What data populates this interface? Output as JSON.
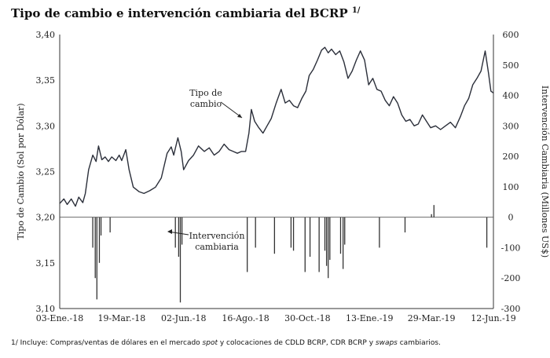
{
  "chart_data": {
    "type": "line",
    "title": "Tipo de cambio e intervención cambiaria del BCRP",
    "title_sup": "1/",
    "ylabel_left": "Tipo de Cambio (Sol por Dólar)",
    "ylabel_right": "Intervención Cambiaria (Millones US$)",
    "ylim_left": [
      3.1,
      3.4
    ],
    "yticks_left": [
      "3,10",
      "3,15",
      "3,20",
      "3,25",
      "3,30",
      "3,35",
      "3,40"
    ],
    "ylim_right": [
      -300,
      600
    ],
    "yticks_right": [
      "-300",
      "-200",
      "-100",
      "0",
      "100",
      "200",
      "300",
      "400",
      "500",
      "600"
    ],
    "x_ticks": [
      "03-Ene.-18",
      "19-Mar.-18",
      "02-Jun.-18",
      "16-Ago.-18",
      "30-Oct.-18",
      "13-Ene.-19",
      "29-Mar.-19",
      "12-Jun.-19"
    ],
    "x_range": [
      "2018-01-03",
      "2019-06-12"
    ],
    "grid": false,
    "annotations": [
      {
        "text": "Tipo de cambio",
        "lines": [
          "Tipo de",
          "cambio"
        ]
      },
      {
        "text": "Intervención cambiaria",
        "lines": [
          "Intervención",
          "cambiaria"
        ]
      }
    ],
    "series": [
      {
        "name": "Tipo de cambio",
        "axis": "left",
        "points": [
          [
            "2018-01-03",
            3.215
          ],
          [
            "2018-01-08",
            3.22
          ],
          [
            "2018-01-12",
            3.214
          ],
          [
            "2018-01-17",
            3.22
          ],
          [
            "2018-01-22",
            3.212
          ],
          [
            "2018-01-26",
            3.222
          ],
          [
            "2018-01-31",
            3.216
          ],
          [
            "2018-02-03",
            3.226
          ],
          [
            "2018-02-07",
            3.252
          ],
          [
            "2018-02-12",
            3.268
          ],
          [
            "2018-02-16",
            3.261
          ],
          [
            "2018-02-19",
            3.278
          ],
          [
            "2018-02-23",
            3.263
          ],
          [
            "2018-02-27",
            3.266
          ],
          [
            "2018-03-03",
            3.261
          ],
          [
            "2018-03-07",
            3.266
          ],
          [
            "2018-03-12",
            3.262
          ],
          [
            "2018-03-16",
            3.268
          ],
          [
            "2018-03-19",
            3.262
          ],
          [
            "2018-03-24",
            3.274
          ],
          [
            "2018-03-28",
            3.252
          ],
          [
            "2018-04-02",
            3.233
          ],
          [
            "2018-04-09",
            3.228
          ],
          [
            "2018-04-15",
            3.226
          ],
          [
            "2018-04-22",
            3.229
          ],
          [
            "2018-04-29",
            3.233
          ],
          [
            "2018-05-06",
            3.243
          ],
          [
            "2018-05-13",
            3.27
          ],
          [
            "2018-05-18",
            3.277
          ],
          [
            "2018-05-21",
            3.268
          ],
          [
            "2018-05-26",
            3.287
          ],
          [
            "2018-05-30",
            3.272
          ],
          [
            "2018-06-02",
            3.252
          ],
          [
            "2018-06-08",
            3.262
          ],
          [
            "2018-06-14",
            3.268
          ],
          [
            "2018-06-20",
            3.278
          ],
          [
            "2018-06-27",
            3.272
          ],
          [
            "2018-07-03",
            3.276
          ],
          [
            "2018-07-09",
            3.268
          ],
          [
            "2018-07-15",
            3.272
          ],
          [
            "2018-07-21",
            3.28
          ],
          [
            "2018-07-27",
            3.274
          ],
          [
            "2018-08-01",
            3.272
          ],
          [
            "2018-08-06",
            3.27
          ],
          [
            "2018-08-11",
            3.272
          ],
          [
            "2018-08-16",
            3.272
          ],
          [
            "2018-08-20",
            3.292
          ],
          [
            "2018-08-23",
            3.318
          ],
          [
            "2018-08-27",
            3.305
          ],
          [
            "2018-09-01",
            3.298
          ],
          [
            "2018-09-06",
            3.292
          ],
          [
            "2018-09-11",
            3.3
          ],
          [
            "2018-09-16",
            3.308
          ],
          [
            "2018-09-22",
            3.325
          ],
          [
            "2018-09-28",
            3.34
          ],
          [
            "2018-10-03",
            3.325
          ],
          [
            "2018-10-08",
            3.328
          ],
          [
            "2018-10-13",
            3.322
          ],
          [
            "2018-10-18",
            3.32
          ],
          [
            "2018-10-23",
            3.33
          ],
          [
            "2018-10-28",
            3.338
          ],
          [
            "2018-11-01",
            3.355
          ],
          [
            "2018-11-06",
            3.362
          ],
          [
            "2018-11-11",
            3.372
          ],
          [
            "2018-11-16",
            3.383
          ],
          [
            "2018-11-20",
            3.386
          ],
          [
            "2018-11-24",
            3.38
          ],
          [
            "2018-11-28",
            3.384
          ],
          [
            "2018-12-03",
            3.378
          ],
          [
            "2018-12-08",
            3.382
          ],
          [
            "2018-12-13",
            3.37
          ],
          [
            "2018-12-18",
            3.352
          ],
          [
            "2018-12-23",
            3.36
          ],
          [
            "2018-12-28",
            3.372
          ],
          [
            "2019-01-02",
            3.382
          ],
          [
            "2019-01-07",
            3.372
          ],
          [
            "2019-01-12",
            3.345
          ],
          [
            "2019-01-17",
            3.352
          ],
          [
            "2019-01-22",
            3.34
          ],
          [
            "2019-01-27",
            3.338
          ],
          [
            "2019-02-01",
            3.328
          ],
          [
            "2019-02-06",
            3.322
          ],
          [
            "2019-02-11",
            3.332
          ],
          [
            "2019-02-16",
            3.325
          ],
          [
            "2019-02-21",
            3.312
          ],
          [
            "2019-02-26",
            3.305
          ],
          [
            "2019-03-03",
            3.307
          ],
          [
            "2019-03-08",
            3.3
          ],
          [
            "2019-03-13",
            3.302
          ],
          [
            "2019-03-18",
            3.312
          ],
          [
            "2019-03-23",
            3.305
          ],
          [
            "2019-03-28",
            3.298
          ],
          [
            "2019-04-03",
            3.3
          ],
          [
            "2019-04-09",
            3.296
          ],
          [
            "2019-04-15",
            3.3
          ],
          [
            "2019-04-21",
            3.304
          ],
          [
            "2019-04-27",
            3.298
          ],
          [
            "2019-05-03",
            3.31
          ],
          [
            "2019-05-08",
            3.322
          ],
          [
            "2019-05-13",
            3.33
          ],
          [
            "2019-05-18",
            3.345
          ],
          [
            "2019-05-23",
            3.352
          ],
          [
            "2019-05-28",
            3.36
          ],
          [
            "2019-06-02",
            3.382
          ],
          [
            "2019-06-06",
            3.358
          ],
          [
            "2019-06-09",
            3.338
          ],
          [
            "2019-06-12",
            3.336
          ]
        ]
      },
      {
        "name": "Intervención cambiaria",
        "axis": "right",
        "type": "bar",
        "points": [
          [
            "2018-02-12",
            -100
          ],
          [
            "2018-02-15",
            -200
          ],
          [
            "2018-02-17",
            -270
          ],
          [
            "2018-02-20",
            -150
          ],
          [
            "2018-02-22",
            -60
          ],
          [
            "2018-03-05",
            -50
          ],
          [
            "2018-05-23",
            -100
          ],
          [
            "2018-05-27",
            -130
          ],
          [
            "2018-05-29",
            -280
          ],
          [
            "2018-05-31",
            -90
          ],
          [
            "2018-08-18",
            -180
          ],
          [
            "2018-08-28",
            -100
          ],
          [
            "2018-09-20",
            -120
          ],
          [
            "2018-10-10",
            -100
          ],
          [
            "2018-10-13",
            -110
          ],
          [
            "2018-10-27",
            -180
          ],
          [
            "2018-11-02",
            -130
          ],
          [
            "2018-11-13",
            -180
          ],
          [
            "2018-11-20",
            -110
          ],
          [
            "2018-11-22",
            -160
          ],
          [
            "2018-11-24",
            -200
          ],
          [
            "2018-11-26",
            -140
          ],
          [
            "2018-12-09",
            -120
          ],
          [
            "2018-12-12",
            -170
          ],
          [
            "2018-12-14",
            -90
          ],
          [
            "2019-01-25",
            -100
          ],
          [
            "2019-02-25",
            -50
          ],
          [
            "2019-03-29",
            10
          ],
          [
            "2019-04-01",
            40
          ],
          [
            "2019-06-04",
            -100
          ]
        ]
      }
    ]
  },
  "footnote": {
    "prefix": "1/ Incluye: Compras/ventas de dólares en el mercado ",
    "spot": "spot",
    "middle": " y colocaciones de CDLD BCRP, CDR BCRP y ",
    "swaps": "swaps",
    "suffix": " cambiarios."
  }
}
